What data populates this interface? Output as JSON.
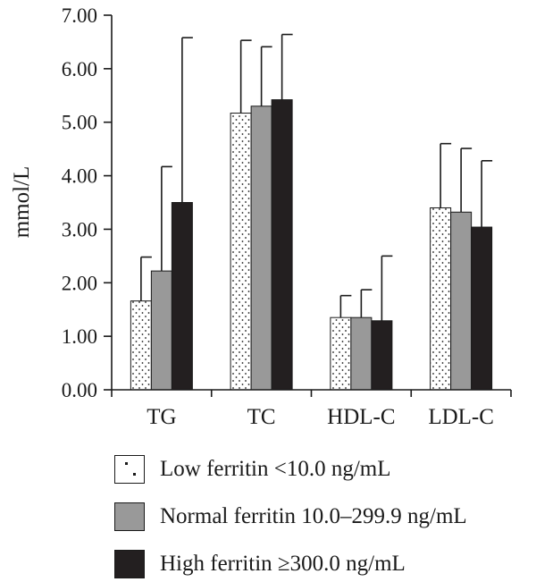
{
  "chart_data": {
    "type": "bar",
    "title": "",
    "xlabel": "",
    "ylabel": "mmol/L",
    "ylim": [
      0,
      7
    ],
    "yticks": [
      "0.00",
      "1.00",
      "2.00",
      "3.00",
      "4.00",
      "5.00",
      "6.00",
      "7.00"
    ],
    "error_bars": "upper",
    "grid": false,
    "legend_position": "bottom",
    "categories": [
      "TG",
      "TC",
      "HDL-C",
      "LDL-C"
    ],
    "series": [
      {
        "name": "Low ferritin <10.0 ng/mL",
        "fill": "dotted",
        "color": "#ffffff",
        "values": [
          1.66,
          5.17,
          1.35,
          3.4
        ],
        "errors": [
          0.82,
          1.36,
          0.41,
          1.2
        ]
      },
      {
        "name": "Normal ferritin 10.0–299.9 ng/mL",
        "fill": "solid",
        "color": "#999999",
        "values": [
          2.22,
          5.3,
          1.35,
          3.32
        ],
        "errors": [
          1.95,
          1.11,
          0.52,
          1.19
        ]
      },
      {
        "name": "High ferritin ≥300.0 ng/mL",
        "fill": "solid",
        "color": "#231f20",
        "values": [
          3.5,
          5.42,
          1.29,
          3.04
        ],
        "errors": [
          3.08,
          1.22,
          1.21,
          1.24
        ]
      }
    ]
  }
}
